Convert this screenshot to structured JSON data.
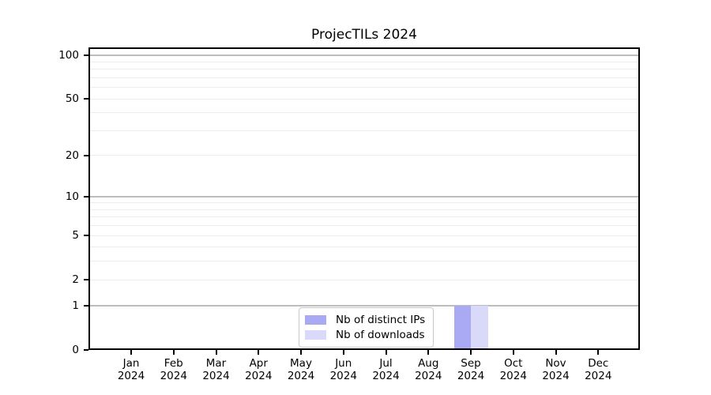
{
  "chart_data": {
    "type": "bar",
    "title": "ProjecTILs 2024",
    "categories": [
      "Jan 2024",
      "Feb 2024",
      "Mar 2024",
      "Apr 2024",
      "May 2024",
      "Jun 2024",
      "Jul 2024",
      "Aug 2024",
      "Sep 2024",
      "Oct 2024",
      "Nov 2024",
      "Dec 2024"
    ],
    "series": [
      {
        "name": "Nb of distinct IPs",
        "color": "#a9a9f4",
        "values": [
          0,
          0,
          0,
          0,
          0,
          0,
          0,
          0,
          1,
          0,
          0,
          0
        ]
      },
      {
        "name": "Nb of downloads",
        "color": "#d9d9f9",
        "values": [
          0,
          0,
          0,
          0,
          0,
          0,
          0,
          0,
          1,
          0,
          0,
          0
        ]
      }
    ],
    "xlabel": "",
    "ylabel": "",
    "yscale": "log1p",
    "ylim": [
      0,
      110
    ],
    "yticks": [
      {
        "value": 0,
        "label": "0"
      },
      {
        "value": 1,
        "label": "1"
      },
      {
        "value": 2,
        "label": "2"
      },
      {
        "value": 5,
        "label": "5"
      },
      {
        "value": 10,
        "label": "10"
      },
      {
        "value": 20,
        "label": "20"
      },
      {
        "value": 50,
        "label": "50"
      },
      {
        "value": 100,
        "label": "100"
      }
    ],
    "grid": {
      "orientation": "horizontal",
      "major_values": [
        1,
        10,
        100
      ],
      "minor_values": [
        2,
        3,
        4,
        5,
        6,
        7,
        8,
        9,
        20,
        30,
        40,
        50,
        60,
        70,
        80,
        90
      ]
    },
    "legend_position": "lower center",
    "colors": {
      "grid_major": "#bdbdbd",
      "grid_minor": "#ececec",
      "spine": "#000000",
      "background": "#ffffff"
    }
  }
}
